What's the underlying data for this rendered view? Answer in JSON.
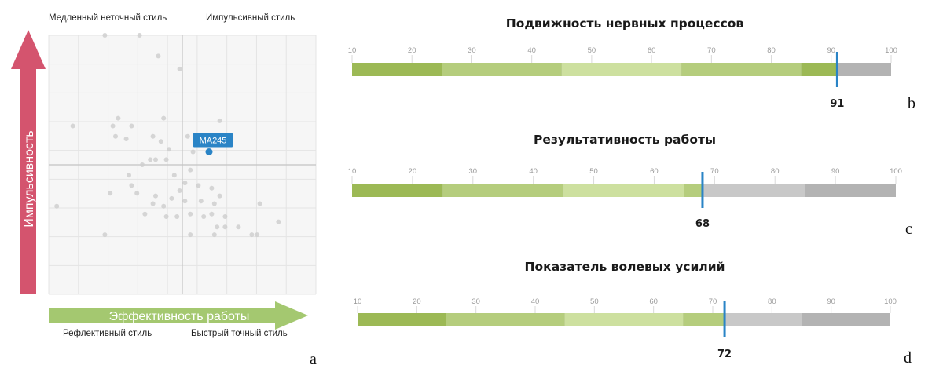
{
  "panels": {
    "a": "a",
    "b": "b",
    "c": "c",
    "d": "d"
  },
  "colors": {
    "segment_1": "#9cb955",
    "segment_2": "#b5cd7d",
    "segment_3": "#cde09f",
    "segment_4": "#b5cd7d",
    "segment_5": "#9cb955",
    "gray_light": "#c8c8c8",
    "gray_dark": "#b3b3b3",
    "marker": "#2a84c6",
    "vertical_arrow": "#d4546e",
    "horizontal_arrow": "#a4c870",
    "scatter_point": "#cfcfcf"
  },
  "chart_data": [
    {
      "type": "scatter",
      "panel": "a",
      "xlabel": "Эффективность работы",
      "ylabel": "Импульсивность",
      "quadrants": {
        "top_left": "Медленный неточный стиль",
        "top_right": "Импульсивный стиль",
        "bottom_left": "Рефлективный стиль",
        "bottom_right": "Быстрый точный стиль"
      },
      "grid": true,
      "xlim": [
        0,
        10
      ],
      "ylim": [
        0,
        10
      ],
      "divider": {
        "x": 5,
        "y": 5
      },
      "highlight": {
        "label": "MA245",
        "x": 6,
        "y": 5.5
      },
      "points": [
        [
          2.1,
          10
        ],
        [
          3.4,
          10
        ],
        [
          4.1,
          9.2
        ],
        [
          4.9,
          8.7
        ],
        [
          2.6,
          6.8
        ],
        [
          4.3,
          6.8
        ],
        [
          0.9,
          6.5
        ],
        [
          2.4,
          6.5
        ],
        [
          3.1,
          6.5
        ],
        [
          2.5,
          6.1
        ],
        [
          2.9,
          6.0
        ],
        [
          3.9,
          6.1
        ],
        [
          6.4,
          6.7
        ],
        [
          5.2,
          6.1
        ],
        [
          4.2,
          5.9
        ],
        [
          5.4,
          5.5
        ],
        [
          4.5,
          5.6
        ],
        [
          4.0,
          5.2
        ],
        [
          4.4,
          5.2
        ],
        [
          3.5,
          5.0
        ],
        [
          3.8,
          5.2
        ],
        [
          3.0,
          4.6
        ],
        [
          3.1,
          4.2
        ],
        [
          4.7,
          4.6
        ],
        [
          5.3,
          4.8
        ],
        [
          5.1,
          4.3
        ],
        [
          4.9,
          4.0
        ],
        [
          4.6,
          3.7
        ],
        [
          4.0,
          3.8
        ],
        [
          3.3,
          3.9
        ],
        [
          2.3,
          3.9
        ],
        [
          5.6,
          4.2
        ],
        [
          6.1,
          4.1
        ],
        [
          6.4,
          3.8
        ],
        [
          6.2,
          3.5
        ],
        [
          5.7,
          3.6
        ],
        [
          5.1,
          3.6
        ],
        [
          3.9,
          3.5
        ],
        [
          4.3,
          3.4
        ],
        [
          3.6,
          3.1
        ],
        [
          4.4,
          3.0
        ],
        [
          4.8,
          3.0
        ],
        [
          5.3,
          3.1
        ],
        [
          6.1,
          3.1
        ],
        [
          6.6,
          3.0
        ],
        [
          7.9,
          3.5
        ],
        [
          5.8,
          3.0
        ],
        [
          6.3,
          2.6
        ],
        [
          6.6,
          2.6
        ],
        [
          7.1,
          2.6
        ],
        [
          6.2,
          2.3
        ],
        [
          5.3,
          2.3
        ],
        [
          7.6,
          2.3
        ],
        [
          7.8,
          2.3
        ],
        [
          8.6,
          2.8
        ],
        [
          0.3,
          3.4
        ],
        [
          2.1,
          2.3
        ]
      ]
    },
    {
      "type": "bar",
      "panel": "b",
      "title": "Подвижность нервных процессов",
      "xlim": [
        10,
        100
      ],
      "ticks": [
        10,
        20,
        30,
        40,
        50,
        60,
        70,
        80,
        90,
        100
      ],
      "segments": [
        {
          "from": 10,
          "to": 25,
          "color": "#9cb955"
        },
        {
          "from": 25,
          "to": 45,
          "color": "#b5cd7d"
        },
        {
          "from": 45,
          "to": 65,
          "color": "#cde09f"
        },
        {
          "from": 65,
          "to": 85,
          "color": "#b5cd7d"
        },
        {
          "from": 85,
          "to": 100,
          "color": "#9cb955"
        }
      ],
      "bands": [
        {
          "from": 10,
          "to": 100,
          "color": "#b3b3b3"
        }
      ],
      "value": 91,
      "value_label": "91"
    },
    {
      "type": "bar",
      "panel": "c",
      "title": "Результативность работы",
      "xlim": [
        10,
        100
      ],
      "ticks": [
        10,
        20,
        30,
        40,
        50,
        60,
        70,
        80,
        90,
        100
      ],
      "segments": [
        {
          "from": 10,
          "to": 25,
          "color": "#9cb955"
        },
        {
          "from": 25,
          "to": 45,
          "color": "#b5cd7d"
        },
        {
          "from": 45,
          "to": 65,
          "color": "#cde09f"
        },
        {
          "from": 65,
          "to": 85,
          "color": "#b5cd7d"
        },
        {
          "from": 85,
          "to": 100,
          "color": "#9cb955"
        }
      ],
      "bands": [
        {
          "from": 10,
          "to": 85,
          "color": "#c8c8c8"
        },
        {
          "from": 85,
          "to": 100,
          "color": "#b3b3b3"
        }
      ],
      "value": 68,
      "value_label": "68"
    },
    {
      "type": "bar",
      "panel": "d",
      "title": "Показатель волевых усилий",
      "xlim": [
        10,
        100
      ],
      "ticks": [
        10,
        20,
        30,
        40,
        50,
        60,
        70,
        80,
        90,
        100
      ],
      "segments": [
        {
          "from": 10,
          "to": 25,
          "color": "#9cb955"
        },
        {
          "from": 25,
          "to": 45,
          "color": "#b5cd7d"
        },
        {
          "from": 45,
          "to": 65,
          "color": "#cde09f"
        },
        {
          "from": 65,
          "to": 85,
          "color": "#b5cd7d"
        },
        {
          "from": 85,
          "to": 100,
          "color": "#9cb955"
        }
      ],
      "bands": [
        {
          "from": 10,
          "to": 85,
          "color": "#c8c8c8"
        },
        {
          "from": 85,
          "to": 100,
          "color": "#b3b3b3"
        }
      ],
      "value": 72,
      "value_label": "72"
    }
  ]
}
